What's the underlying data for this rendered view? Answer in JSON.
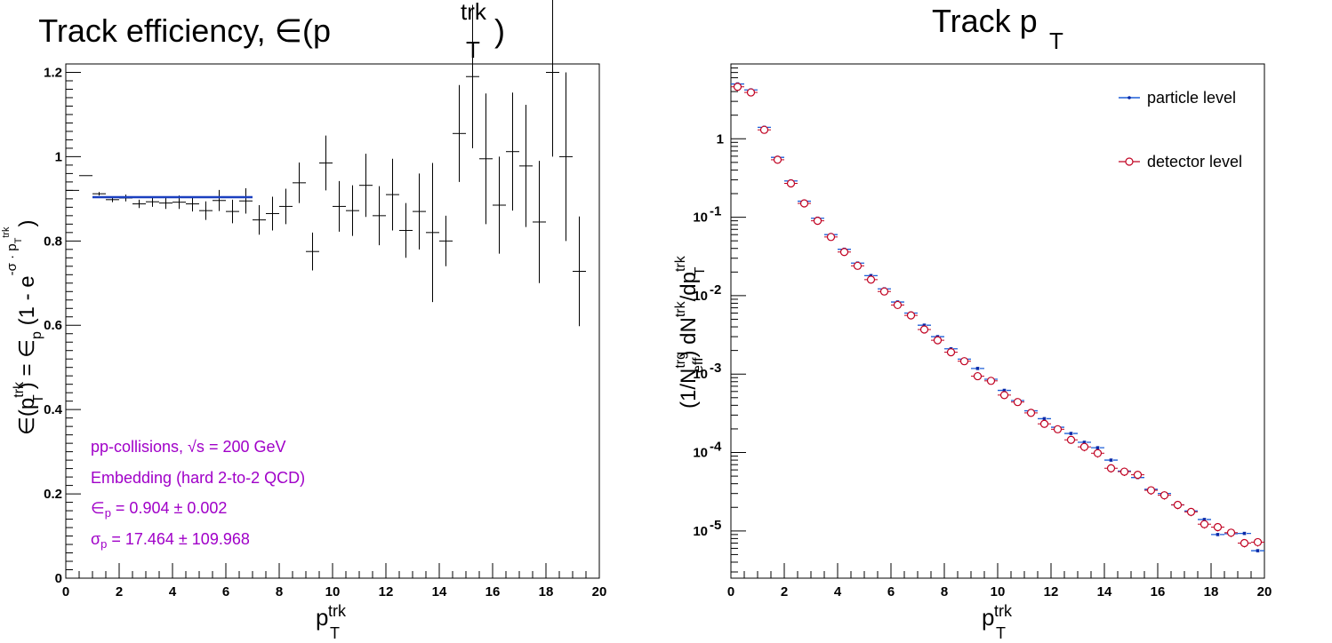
{
  "colors": {
    "axis": "#000000",
    "fit_line": "#1a3fbf",
    "annotation": "#a000c8",
    "particle_marker": "#0a2aa8",
    "particle_line": "#1f5fd8",
    "detector_marker": "#c00020"
  },
  "chart_data": [
    {
      "type": "scatter",
      "title": {
        "main": "Track efficiency, ∈(p",
        "sub": "T",
        "sup": "trk",
        "close": ")"
      },
      "xlabel": {
        "main": "p",
        "sub": "T",
        "sup": "trk"
      },
      "ylabel": {
        "lhs": "∈(p",
        "lhs_sub": "T",
        "lhs_sup": "trk",
        "mid": ") = ∈",
        "p_sub": "p",
        "rhs": " (1 - e",
        "exp_sup": "-σ · p",
        "exp_sub": "T",
        "exp_sup2": "trk",
        "close": ")"
      },
      "xlim": [
        0,
        20
      ],
      "ylim": [
        0,
        1.22
      ],
      "x_ticks": [
        "0",
        "2",
        "4",
        "6",
        "8",
        "10",
        "12",
        "14",
        "16",
        "18",
        "20"
      ],
      "y_ticks": [
        "0",
        "0.2",
        "0.4",
        "0.6",
        "0.8",
        "1",
        "1.2"
      ],
      "grid": false,
      "points": [
        {
          "x": 0.25,
          "y": 0.92,
          "err": 0.0
        },
        {
          "x": 0.75,
          "y": 0.955,
          "err": 0.0
        },
        {
          "x": 1.25,
          "y": 0.912,
          "err": 0.004
        },
        {
          "x": 1.75,
          "y": 0.898,
          "err": 0.006
        },
        {
          "x": 2.25,
          "y": 0.902,
          "err": 0.008
        },
        {
          "x": 2.75,
          "y": 0.888,
          "err": 0.01
        },
        {
          "x": 3.25,
          "y": 0.893,
          "err": 0.012
        },
        {
          "x": 3.75,
          "y": 0.89,
          "err": 0.014
        },
        {
          "x": 4.25,
          "y": 0.892,
          "err": 0.016
        },
        {
          "x": 4.75,
          "y": 0.888,
          "err": 0.018
        },
        {
          "x": 5.25,
          "y": 0.872,
          "err": 0.022
        },
        {
          "x": 5.75,
          "y": 0.896,
          "err": 0.025
        },
        {
          "x": 6.25,
          "y": 0.87,
          "err": 0.028
        },
        {
          "x": 6.75,
          "y": 0.895,
          "err": 0.03
        },
        {
          "x": 7.25,
          "y": 0.85,
          "err": 0.035
        },
        {
          "x": 7.75,
          "y": 0.865,
          "err": 0.04
        },
        {
          "x": 8.25,
          "y": 0.882,
          "err": 0.042
        },
        {
          "x": 8.75,
          "y": 0.938,
          "err": 0.048
        },
        {
          "x": 9.25,
          "y": 0.775,
          "err": 0.045
        },
        {
          "x": 9.75,
          "y": 0.985,
          "err": 0.065
        },
        {
          "x": 10.25,
          "y": 0.882,
          "err": 0.06
        },
        {
          "x": 10.75,
          "y": 0.872,
          "err": 0.06
        },
        {
          "x": 11.25,
          "y": 0.932,
          "err": 0.075
        },
        {
          "x": 11.75,
          "y": 0.86,
          "err": 0.07
        },
        {
          "x": 12.25,
          "y": 0.91,
          "err": 0.085
        },
        {
          "x": 12.75,
          "y": 0.825,
          "err": 0.065
        },
        {
          "x": 13.25,
          "y": 0.87,
          "err": 0.09
        },
        {
          "x": 13.75,
          "y": 0.82,
          "err": 0.165
        },
        {
          "x": 14.25,
          "y": 0.8,
          "err": 0.06
        },
        {
          "x": 14.75,
          "y": 1.055,
          "err": 0.115
        },
        {
          "x": 15.25,
          "y": 1.19,
          "err": 0.17
        },
        {
          "x": 15.75,
          "y": 0.995,
          "err": 0.155
        },
        {
          "x": 16.25,
          "y": 0.885,
          "err": 0.115
        },
        {
          "x": 16.75,
          "y": 1.012,
          "err": 0.14
        },
        {
          "x": 17.25,
          "y": 0.978,
          "err": 0.145
        },
        {
          "x": 17.75,
          "y": 0.845,
          "err": 0.145
        },
        {
          "x": 18.25,
          "y": 1.2,
          "err": 0.2
        },
        {
          "x": 18.75,
          "y": 1.0,
          "err": 0.2
        },
        {
          "x": 19.25,
          "y": 0.728,
          "err": 0.13
        }
      ],
      "fit": {
        "x": [
          1,
          7
        ],
        "y": 0.904
      },
      "annotations": {
        "line1_pre": "pp-collisions, ",
        "line1_sqrt": "√s",
        "line1_post": " = 200 GeV",
        "line2": "Embedding (hard 2-to-2 QCD)",
        "line3_pre": "∈",
        "line3_sub": "p",
        "line3_post": " = 0.904 ± 0.002",
        "line4_pre": "σ",
        "line4_sub": "p",
        "line4_post": " = 17.464 ± 109.968"
      }
    },
    {
      "type": "scatter",
      "title": {
        "main": "Track p",
        "sub": "T"
      },
      "xlabel": {
        "main": "p",
        "sub": "T",
        "sup": "trk"
      },
      "ylabel": {
        "a": "(1/N",
        "a_sup": "trg",
        "a_sub": "eff",
        "b": ") dN",
        "b_sup": "trk",
        "c": "/dp",
        "c_sub": "T",
        "c_sup": "trk"
      },
      "xlim": [
        0,
        20
      ],
      "ylim_log": [
        2.5e-06,
        9.0
      ],
      "log_y": true,
      "x_ticks": [
        "0",
        "2",
        "4",
        "6",
        "8",
        "10",
        "12",
        "14",
        "16",
        "18",
        "20"
      ],
      "y_ticks": [
        {
          "value": 1,
          "base": "1",
          "exp": ""
        },
        {
          "value": 0.1,
          "base": "10",
          "exp": "-1"
        },
        {
          "value": 0.01,
          "base": "10",
          "exp": "-2"
        },
        {
          "value": 0.001,
          "base": "10",
          "exp": "-3"
        },
        {
          "value": 0.0001,
          "base": "10",
          "exp": "-4"
        },
        {
          "value": 1e-05,
          "base": "10",
          "exp": "-5"
        }
      ],
      "grid": false,
      "legend_placement": "top-right",
      "series": [
        {
          "name": "particle level",
          "x": [
            0.25,
            0.75,
            1.25,
            1.75,
            2.25,
            2.75,
            3.25,
            3.75,
            4.25,
            4.75,
            5.25,
            5.75,
            6.25,
            6.75,
            7.25,
            7.75,
            8.25,
            8.75,
            9.25,
            9.75,
            10.25,
            10.75,
            11.25,
            11.75,
            12.25,
            12.75,
            13.25,
            13.75,
            14.25,
            14.75,
            15.25,
            15.75,
            16.25,
            16.75,
            17.25,
            17.75,
            18.25,
            18.75,
            19.25,
            19.75
          ],
          "y": [
            5.0,
            4.2,
            1.4,
            0.58,
            0.29,
            0.16,
            0.097,
            0.06,
            0.039,
            0.026,
            0.018,
            0.0122,
            0.0083,
            0.006,
            0.0042,
            0.003,
            0.0021,
            0.00155,
            0.00118,
            0.00086,
            0.00062,
            0.00046,
            0.00034,
            0.00027,
            0.00021,
            0.000175,
            0.000135,
            0.000115,
            8e-05,
            5.8e-05,
            4.8e-05,
            3.4e-05,
            3e-05,
            2.15e-05,
            1.8e-05,
            1.4e-05,
            9e-06,
            9.2e-06,
            9.3e-06,
            5.6e-06
          ]
        },
        {
          "name": "detector level",
          "x": [
            0.25,
            0.75,
            1.25,
            1.75,
            2.25,
            2.75,
            3.25,
            3.75,
            4.25,
            4.75,
            5.25,
            5.75,
            6.25,
            6.75,
            7.25,
            7.75,
            8.25,
            8.75,
            9.25,
            9.75,
            10.25,
            10.75,
            11.25,
            11.75,
            12.25,
            12.75,
            13.25,
            13.75,
            14.25,
            14.75,
            15.25,
            15.75,
            16.25,
            16.75,
            17.25,
            17.75,
            18.25,
            18.75,
            19.25,
            19.75
          ],
          "y": [
            4.6,
            3.9,
            1.3,
            0.54,
            0.27,
            0.15,
            0.09,
            0.056,
            0.036,
            0.024,
            0.016,
            0.0113,
            0.0076,
            0.0056,
            0.0037,
            0.0027,
            0.0019,
            0.00146,
            0.00094,
            0.00082,
            0.00054,
            0.00044,
            0.00032,
            0.000232,
            0.000198,
            0.000145,
            0.000118,
            9.8e-05,
            6.3e-05,
            5.7e-05,
            5.2e-05,
            3.3e-05,
            2.85e-05,
            2.15e-05,
            1.75e-05,
            1.22e-05,
            1.12e-05,
            9.5e-06,
            7e-06,
            7.2e-06
          ]
        }
      ]
    }
  ]
}
